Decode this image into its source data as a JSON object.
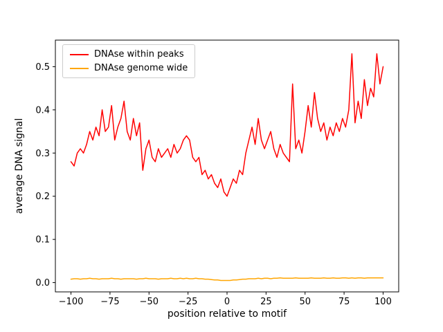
{
  "figure": {
    "background": "#ffffff"
  },
  "chart_data": {
    "type": "line",
    "title": "",
    "xlabel": "position relative to motif",
    "ylabel": "average DNA signal",
    "xlim": [
      -110,
      110
    ],
    "ylim": [
      -0.0215,
      0.5615
    ],
    "grid": false,
    "xticks": {
      "values": [
        -100,
        -75,
        -50,
        -25,
        0,
        25,
        50,
        75,
        100
      ],
      "labels": [
        "−100",
        "−75",
        "−50",
        "−25",
        "0",
        "25",
        "50",
        "75",
        "100"
      ]
    },
    "yticks": {
      "values": [
        0.0,
        0.1,
        0.2,
        0.3,
        0.4,
        0.5
      ],
      "labels": [
        "0.0",
        "0.1",
        "0.2",
        "0.3",
        "0.4",
        "0.5"
      ]
    },
    "legend": {
      "position": "upper-left",
      "entries": [
        {
          "label": "DNAse within peaks",
          "color": "#ff0000"
        },
        {
          "label": "DNAse genome wide",
          "color": "#ffa500"
        }
      ]
    },
    "x": [
      -100,
      -98,
      -96,
      -94,
      -92,
      -90,
      -88,
      -86,
      -84,
      -82,
      -80,
      -78,
      -76,
      -74,
      -72,
      -70,
      -68,
      -66,
      -64,
      -62,
      -60,
      -58,
      -56,
      -54,
      -52,
      -50,
      -48,
      -46,
      -44,
      -42,
      -40,
      -38,
      -36,
      -34,
      -32,
      -30,
      -28,
      -26,
      -24,
      -22,
      -20,
      -18,
      -16,
      -14,
      -12,
      -10,
      -8,
      -6,
      -4,
      -2,
      0,
      2,
      4,
      6,
      8,
      10,
      12,
      14,
      16,
      18,
      20,
      22,
      24,
      26,
      28,
      30,
      32,
      34,
      36,
      38,
      40,
      42,
      44,
      46,
      48,
      50,
      52,
      54,
      56,
      58,
      60,
      62,
      64,
      66,
      68,
      70,
      72,
      74,
      76,
      78,
      80,
      82,
      84,
      86,
      88,
      90,
      92,
      94,
      96,
      98,
      100
    ],
    "series": [
      {
        "name": "DNAse within peaks",
        "color": "#ff0000",
        "values": [
          0.28,
          0.27,
          0.3,
          0.31,
          0.3,
          0.32,
          0.35,
          0.33,
          0.36,
          0.34,
          0.4,
          0.35,
          0.36,
          0.41,
          0.33,
          0.36,
          0.38,
          0.42,
          0.35,
          0.33,
          0.38,
          0.34,
          0.37,
          0.26,
          0.31,
          0.33,
          0.29,
          0.28,
          0.31,
          0.29,
          0.3,
          0.31,
          0.29,
          0.32,
          0.3,
          0.31,
          0.33,
          0.34,
          0.33,
          0.29,
          0.28,
          0.29,
          0.25,
          0.26,
          0.24,
          0.25,
          0.23,
          0.22,
          0.24,
          0.21,
          0.2,
          0.22,
          0.24,
          0.23,
          0.26,
          0.25,
          0.3,
          0.33,
          0.36,
          0.32,
          0.38,
          0.33,
          0.31,
          0.33,
          0.35,
          0.31,
          0.29,
          0.32,
          0.3,
          0.29,
          0.28,
          0.46,
          0.31,
          0.33,
          0.3,
          0.35,
          0.41,
          0.36,
          0.44,
          0.38,
          0.35,
          0.37,
          0.33,
          0.36,
          0.34,
          0.37,
          0.35,
          0.38,
          0.36,
          0.4,
          0.53,
          0.37,
          0.42,
          0.38,
          0.47,
          0.41,
          0.45,
          0.43,
          0.53,
          0.46,
          0.5
        ]
      },
      {
        "name": "DNAse genome wide",
        "color": "#ffa500",
        "values": [
          0.008,
          0.009,
          0.009,
          0.008,
          0.009,
          0.009,
          0.01,
          0.009,
          0.009,
          0.008,
          0.009,
          0.009,
          0.009,
          0.01,
          0.009,
          0.009,
          0.008,
          0.009,
          0.009,
          0.009,
          0.009,
          0.008,
          0.009,
          0.009,
          0.01,
          0.009,
          0.009,
          0.009,
          0.008,
          0.009,
          0.009,
          0.009,
          0.01,
          0.009,
          0.009,
          0.01,
          0.009,
          0.01,
          0.009,
          0.009,
          0.01,
          0.009,
          0.009,
          0.008,
          0.008,
          0.007,
          0.006,
          0.006,
          0.005,
          0.005,
          0.005,
          0.005,
          0.006,
          0.006,
          0.007,
          0.008,
          0.008,
          0.009,
          0.009,
          0.009,
          0.01,
          0.009,
          0.01,
          0.01,
          0.009,
          0.01,
          0.01,
          0.011,
          0.01,
          0.01,
          0.01,
          0.01,
          0.011,
          0.01,
          0.01,
          0.01,
          0.01,
          0.011,
          0.01,
          0.01,
          0.01,
          0.011,
          0.01,
          0.01,
          0.011,
          0.01,
          0.01,
          0.011,
          0.011,
          0.01,
          0.011,
          0.01,
          0.011,
          0.011,
          0.01,
          0.011,
          0.011,
          0.011,
          0.011,
          0.011,
          0.011
        ]
      }
    ]
  }
}
